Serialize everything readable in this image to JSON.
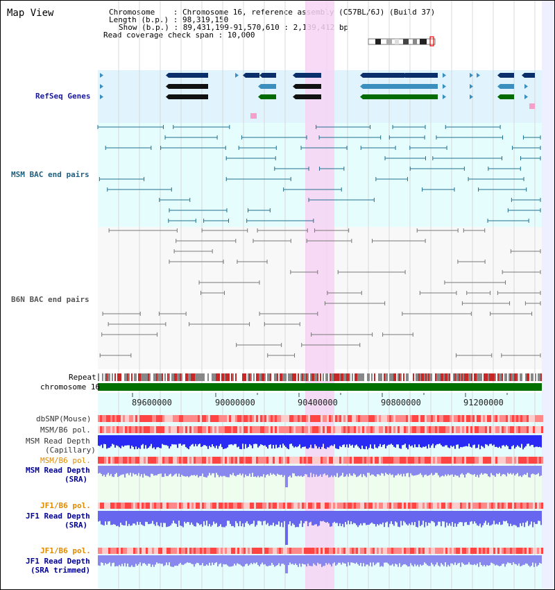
{
  "page": {
    "title": "Map View"
  },
  "info": {
    "chromosome": "Chromosome    : Chromosome 16, reference assembly (C57BL/6J) (Build 37)",
    "length": "Length (b.p.) : 98,319,150",
    "show": "Show (b.p.) : 89,431,199-91,570,610 : 2,139,412 bp",
    "coverage": "Read coverage check span : 10,000"
  },
  "tracks": {
    "refseq": "RefSeq Genes",
    "msm_bac": "MSM BAC end pairs",
    "b6n_bac": "B6N BAC end pairs",
    "repeat": "Repeat",
    "chromosome": "chromosome 16",
    "dbsnp": "dbSNP(Mouse)",
    "msm_b6_pol": "MSM/B6 pol.",
    "msm_read_depth": "MSM Read Depth",
    "capillary": "(Capillary)",
    "msm_b6_pol2": "MSM/B6 pol.",
    "msm_read_depth_sra": "MSM Read Depth",
    "sra": "(SRA)",
    "jf1_b6_pol": "JF1/B6 pol.",
    "jf1_read_depth": "JF1 Read Depth",
    "sra2": "(SRA)",
    "jf1_b6_pol2": "JF1/B6 pol.",
    "jf1_read_depth2": "JF1 Read Depth",
    "sra_trimmed": "(SRA trimmed)"
  },
  "axis": {
    "ticks": [
      "89600000",
      "90000000",
      "90400000",
      "90800000",
      "91200000"
    ]
  },
  "colors": {
    "refseq_bg": "#e1f3fd",
    "msm_bg": "#e6fdfd",
    "b6n_bg": "#f7f7f7",
    "highlight": "#f7d7f7",
    "msm_line": "#1e6f8f",
    "b6n_line": "#777777",
    "gene_dark": "#0b2f6b",
    "gene_mid": "#3a8fbf",
    "gene_green": "#006b00",
    "chrom_green": "#007000",
    "label_blue": "#000099",
    "label_teal": "#1f5f7f",
    "label_orange": "#e08a00"
  }
}
